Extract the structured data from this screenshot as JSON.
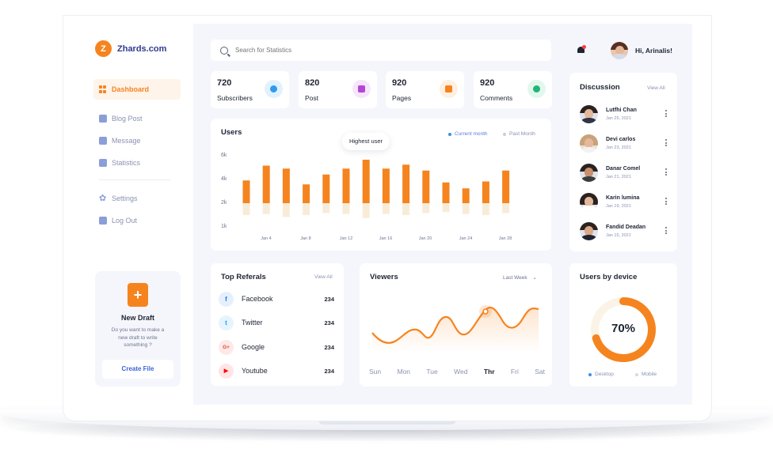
{
  "app": {
    "name": "Zhards.com",
    "logo_letter": "Z",
    "accent": "#f5841f",
    "brand_text": "#2f3a8f"
  },
  "sidebar": {
    "items": [
      {
        "label": "Dashboard",
        "icon": "grid-icon",
        "active": true
      },
      {
        "label": "Blog Post",
        "icon": "document-icon"
      },
      {
        "label": "Message",
        "icon": "mail-icon"
      },
      {
        "label": "Statistics",
        "icon": "bar-chart-icon"
      },
      {
        "label": "Settings",
        "icon": "gear-icon"
      },
      {
        "label": "Log Out",
        "icon": "logout-icon"
      }
    ],
    "draft": {
      "title": "New Draft",
      "description": "Do you want to make a new draft to write something ?",
      "button": "Create File",
      "icon": "add-file-icon"
    }
  },
  "header": {
    "search_placeholder": "Search for Statistics",
    "greeting": "Hi, Arinalis!"
  },
  "stats": [
    {
      "value": "720",
      "label": "Subscribers",
      "icon": "eye-icon",
      "color": "#2e9bf0",
      "bg": "#e3f1fd"
    },
    {
      "value": "820",
      "label": "Post",
      "icon": "post-icon",
      "color": "#b545d6",
      "bg": "#f5e6fb"
    },
    {
      "value": "920",
      "label": "Pages",
      "icon": "page-icon",
      "color": "#f5841f",
      "bg": "#fef0e2"
    },
    {
      "value": "920",
      "label": "Comments",
      "icon": "comment-icon",
      "color": "#22b573",
      "bg": "#e2f7ed"
    }
  ],
  "users_chart": {
    "title": "Users",
    "tooltip": "Highest user",
    "legend": [
      {
        "label": "Current month",
        "color": "#3b8ee8"
      },
      {
        "label": "Past Month",
        "color": "#c8ccd8"
      }
    ]
  },
  "chart_data": {
    "type": "bar",
    "yticks": [
      "6k",
      "4k",
      "2k",
      "1k"
    ],
    "xticks": [
      "Jan 4",
      "Jan 8",
      "Jan 12",
      "Jan 16",
      "Jan 20",
      "Jan 24",
      "Jan 28"
    ],
    "series": [
      {
        "name": "Current month",
        "values": [
          3.8,
          5.3,
          5.0,
          3.4,
          4.4,
          5.0,
          5.9,
          5.0,
          5.4,
          4.8,
          3.6,
          3.0,
          3.7,
          4.8
        ]
      },
      {
        "name": "Past Month",
        "values": [
          1.2,
          1.1,
          1.4,
          1.2,
          1.0,
          1.1,
          1.5,
          1.1,
          1.2,
          1.0,
          0.9,
          1.1,
          1.2,
          1.0
        ]
      }
    ]
  },
  "referrals": {
    "title": "Top Referals",
    "view_all": "View All",
    "items": [
      {
        "name": "Facebook",
        "count": "234",
        "icon": "facebook-icon",
        "glyph": "f",
        "color": "#1877f2",
        "bg": "#e6f0fd"
      },
      {
        "name": "Twitter",
        "count": "234",
        "icon": "twitter-icon",
        "glyph": "t",
        "color": "#1da1f2",
        "bg": "#e6f4fd"
      },
      {
        "name": "Google",
        "count": "234",
        "icon": "google-plus-icon",
        "glyph": "G+",
        "color": "#ea4335",
        "bg": "#fde9e8"
      },
      {
        "name": "Youtube",
        "count": "234",
        "icon": "youtube-icon",
        "glyph": "▶",
        "color": "#ff0000",
        "bg": "#ffe5e5"
      }
    ]
  },
  "viewers": {
    "title": "Viewers",
    "range": "Last Week",
    "days": [
      "Sun",
      "Mon",
      "Tue",
      "Wed",
      "Thr",
      "Fri",
      "Sat"
    ],
    "active_day": "Thr",
    "line_color": "#f5841f"
  },
  "device": {
    "title": "Users by device",
    "value": "70%",
    "fraction": 0.7,
    "legend": [
      {
        "label": "Desktop",
        "color": "#3b8ee8"
      },
      {
        "label": "Mobile",
        "color": "#d6d9e2"
      }
    ]
  },
  "discussion": {
    "title": "Discussion",
    "view_all": "View All",
    "items": [
      {
        "name": "Lutfhi Chan",
        "date": "Jan 25, 2021"
      },
      {
        "name": "Devi carlos",
        "date": "Jan 23, 2021"
      },
      {
        "name": "Danar Comel",
        "date": "Jan 21, 2021"
      },
      {
        "name": "Karin lumina",
        "date": "Jan 19, 2021"
      },
      {
        "name": "Fandid Deadan",
        "date": "Jan 15, 2021"
      }
    ]
  }
}
